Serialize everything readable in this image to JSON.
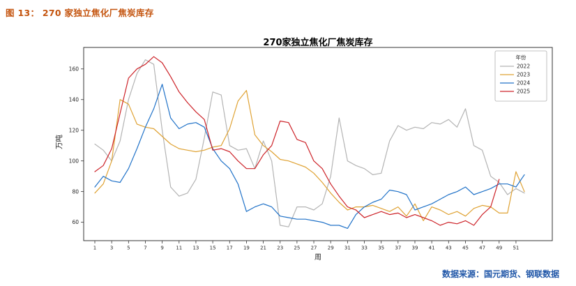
{
  "figure": {
    "caption": "图 13：  270 家独立焦化厂焦炭库存",
    "caption_color": "#c4540e"
  },
  "source": {
    "text": "数据来源：国元期货、钢联数据",
    "color": "#2157a8"
  },
  "chart_data": {
    "type": "line",
    "title": "270家独立焦化厂焦炭库存",
    "xlabel": "周",
    "ylabel": "万吨",
    "ylim": [
      48,
      174
    ],
    "yticks": [
      60,
      80,
      100,
      120,
      140,
      160
    ],
    "xticks": [
      1,
      3,
      5,
      7,
      9,
      11,
      13,
      15,
      17,
      19,
      21,
      23,
      25,
      27,
      29,
      31,
      33,
      35,
      37,
      39,
      41,
      43,
      45,
      47,
      49,
      51
    ],
    "x_range": [
      1,
      52
    ],
    "grid": false,
    "legend_title": "年份",
    "legend_position": "top-right",
    "series": [
      {
        "name": "2022",
        "color": "#b3b3b3",
        "values": [
          111,
          107,
          100,
          113,
          140,
          157,
          166,
          163,
          120,
          83,
          77,
          79,
          88,
          115,
          145,
          143,
          110,
          107,
          108,
          95,
          113,
          100,
          58,
          57,
          70,
          70,
          68,
          72,
          90,
          128,
          100,
          97,
          95,
          91,
          92,
          113,
          123,
          120,
          122,
          121,
          125,
          124,
          127,
          122,
          134,
          110,
          107,
          90,
          86,
          78,
          82,
          79
        ]
      },
      {
        "name": "2023",
        "color": "#dfa233",
        "values": [
          79,
          85,
          100,
          140,
          137,
          124,
          122,
          121,
          116,
          111,
          108,
          107,
          106,
          107,
          109,
          110,
          121,
          139,
          146,
          117,
          110,
          106,
          101,
          100,
          98,
          96,
          92,
          86,
          79,
          73,
          68,
          70,
          70,
          71,
          69,
          67,
          70,
          64,
          72,
          61,
          70,
          68,
          65,
          67,
          64,
          69,
          71,
          70,
          66,
          66,
          93,
          80
        ]
      },
      {
        "name": "2024",
        "color": "#2072c8",
        "values": [
          83,
          90,
          87,
          86,
          95,
          108,
          122,
          134,
          150,
          128,
          121,
          124,
          125,
          122,
          108,
          100,
          95,
          85,
          67,
          70,
          72,
          70,
          64,
          63,
          62,
          62,
          61,
          60,
          58,
          58,
          56,
          65,
          70,
          73,
          75,
          81,
          80,
          78,
          68,
          70,
          72,
          75,
          78,
          80,
          83,
          78,
          80,
          82,
          85,
          85,
          83,
          91
        ]
      },
      {
        "name": "2025",
        "color": "#cd2329",
        "values": [
          93,
          97,
          108,
          131,
          154,
          160,
          163,
          168,
          164,
          155,
          145,
          138,
          132,
          127,
          107,
          108,
          106,
          100,
          95,
          95,
          104,
          110,
          126,
          125,
          114,
          112,
          100,
          95,
          85,
          77,
          70,
          68,
          63,
          65,
          67,
          65,
          66,
          63,
          65,
          63,
          61,
          58,
          60,
          59,
          61,
          58,
          65,
          70,
          88,
          null,
          null,
          null
        ]
      }
    ]
  }
}
